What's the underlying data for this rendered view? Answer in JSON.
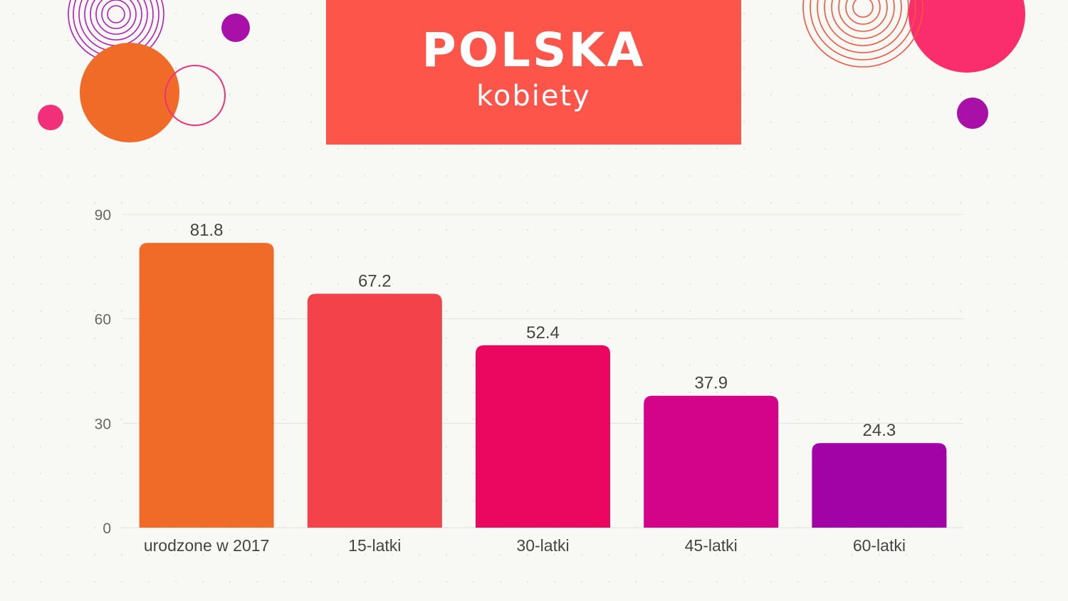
{
  "header": {
    "title": "POLSKA",
    "subtitle": "kobiety"
  },
  "colors": {
    "background": "#f8f9f5",
    "header_bg": "#fe554b",
    "gridline": "#dfe2dc",
    "axis_text": "#666666",
    "label_text": "#444444",
    "bar_colors": [
      "#f06b27",
      "#f4424a",
      "#eb075f",
      "#d4048a",
      "#a203a6"
    ]
  },
  "chart_data": {
    "type": "bar",
    "categories": [
      "urodzone w 2017",
      "15-latki",
      "30-latki",
      "45-latki",
      "60-latki"
    ],
    "values": [
      81.8,
      67.2,
      52.4,
      37.9,
      24.3
    ],
    "value_labels": [
      "81.8",
      "67.2",
      "52.4",
      "37.9",
      "24.3"
    ],
    "ylim": [
      0,
      90
    ],
    "yticks": [
      0,
      30,
      60,
      90
    ],
    "ytick_labels": [
      "0",
      "30",
      "60",
      "90"
    ],
    "grid": true,
    "legend": "none"
  }
}
